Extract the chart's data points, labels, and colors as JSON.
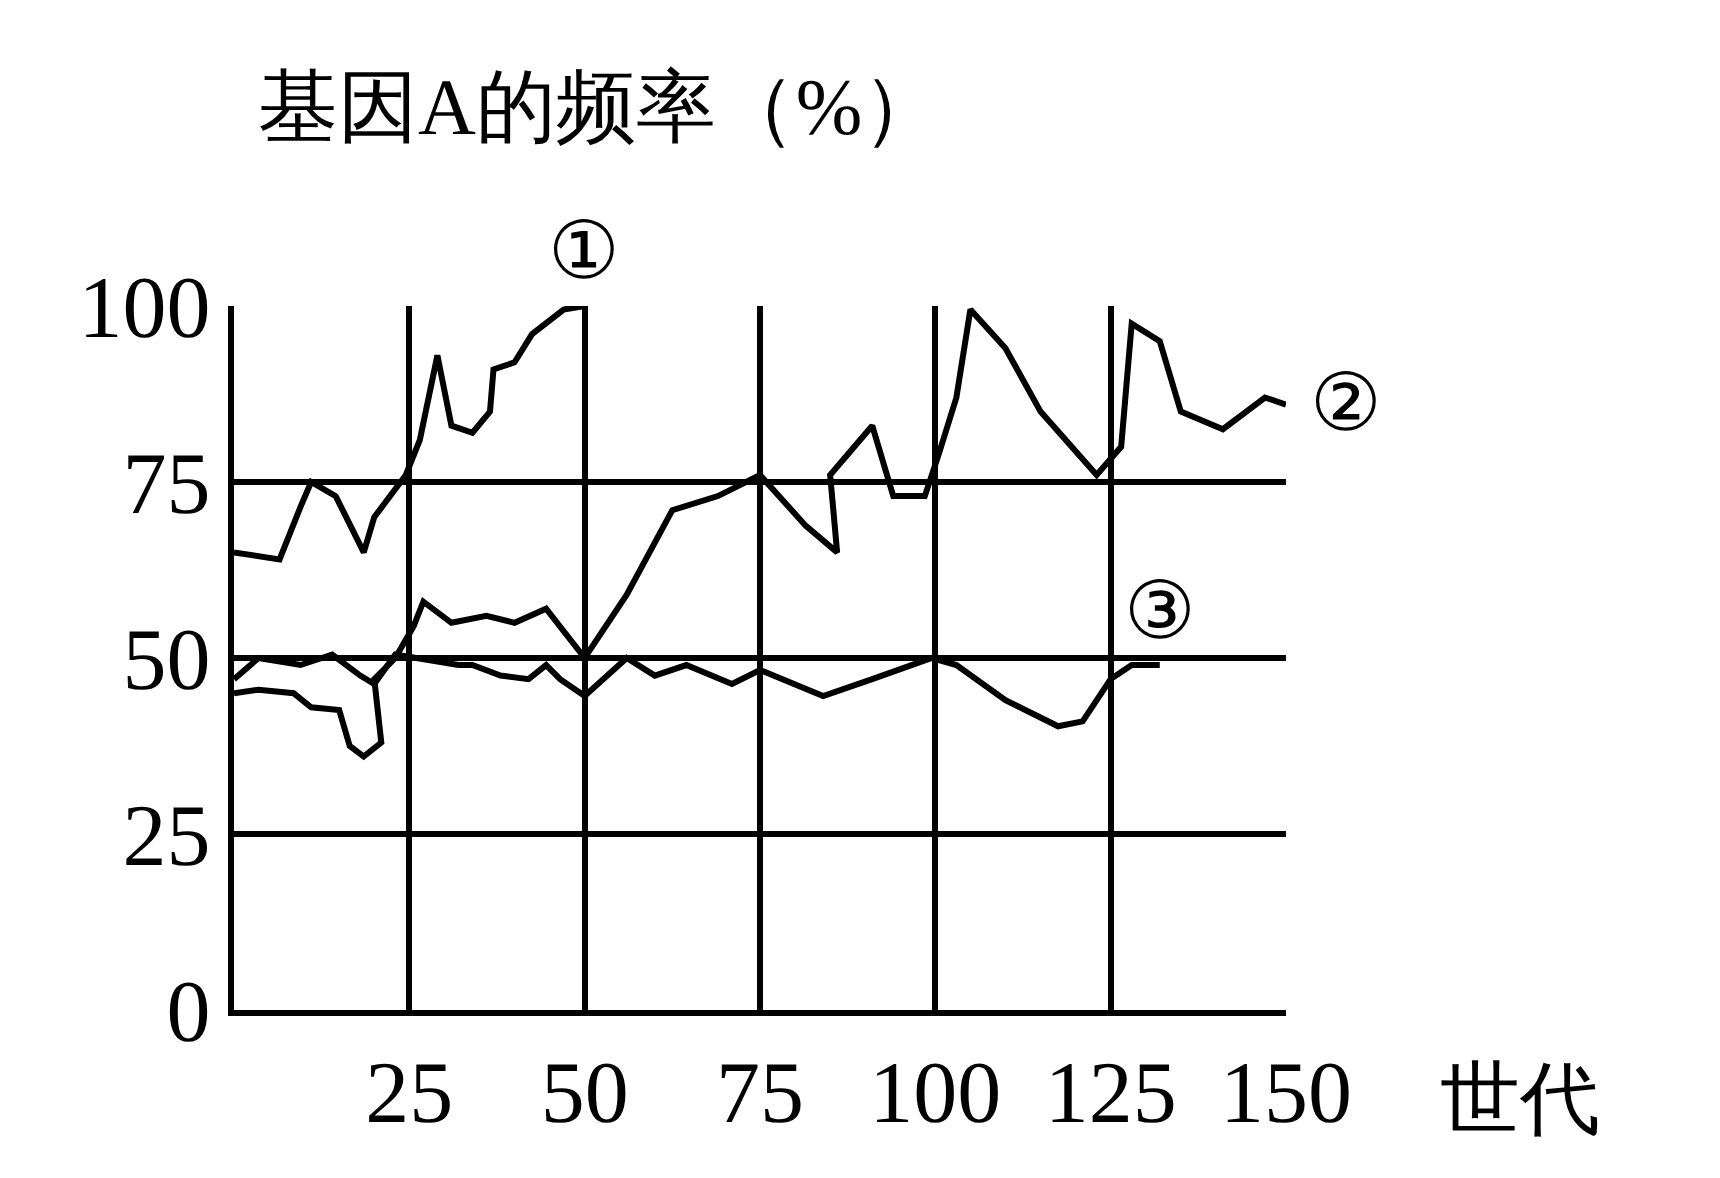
{
  "chart_data": {
    "type": "line",
    "ylabel": "基因A的频率（%）",
    "xlabel": "世代",
    "xlim": [
      0,
      150
    ],
    "ylim": [
      0,
      100
    ],
    "xticks": [
      25,
      50,
      75,
      100,
      125,
      150
    ],
    "yticks": [
      0,
      25,
      50,
      75,
      100
    ],
    "grid": true,
    "legend": false,
    "marker": "none",
    "line_style": "solid",
    "series": [
      {
        "name": "①",
        "color": "#000000",
        "x": [
          0,
          6.5,
          9.5,
          11,
          14.5,
          18.5,
          20,
          24.5,
          26.5,
          29,
          31,
          34,
          36.5,
          37,
          40,
          42.5,
          47,
          50
        ],
        "values": [
          65,
          64,
          71.5,
          75,
          73,
          65,
          70,
          76,
          81,
          93,
          83,
          82,
          85,
          91,
          92,
          96,
          99.5,
          100
        ]
      },
      {
        "name": "②",
        "color": "#000000",
        "x": [
          0,
          3.5,
          8.5,
          11,
          15,
          16.5,
          18.5,
          21,
          20,
          23,
          25.6,
          27,
          31,
          36,
          40,
          44.5,
          50,
          56,
          62.5,
          69,
          75,
          81.5,
          86,
          85,
          91,
          94,
          98.5,
          100.5,
          103,
          105,
          110,
          115,
          123,
          126.5,
          128,
          132,
          135,
          141,
          147,
          150
        ],
        "values": [
          45,
          45.5,
          45,
          43,
          42.6,
          37.5,
          36,
          38,
          47,
          50,
          54.5,
          58,
          55,
          56,
          55,
          57,
          50,
          59,
          71,
          73,
          76,
          68.8,
          65,
          76,
          83,
          73,
          73,
          79,
          87,
          99.5,
          94,
          85,
          76,
          80,
          97.5,
          95,
          85,
          82.5,
          87,
          86
        ]
      },
      {
        "name": "③",
        "color": "#000000",
        "x": [
          0,
          3.5,
          9.5,
          14,
          18,
          20,
          23,
          32,
          34,
          38,
          42,
          44.5,
          46.5,
          50,
          56,
          60,
          64.5,
          71,
          75,
          84,
          91,
          99.5,
          103,
          110,
          117.5,
          121,
          125,
          128,
          132
        ],
        "values": [
          47,
          50,
          49,
          50.5,
          47.5,
          46.3,
          50.5,
          49,
          49,
          47.5,
          47,
          49,
          47,
          44.6,
          50,
          47.5,
          49,
          46.3,
          48.3,
          44.6,
          47,
          50,
          49,
          44,
          40.3,
          41,
          47,
          49,
          49
        ]
      }
    ]
  }
}
